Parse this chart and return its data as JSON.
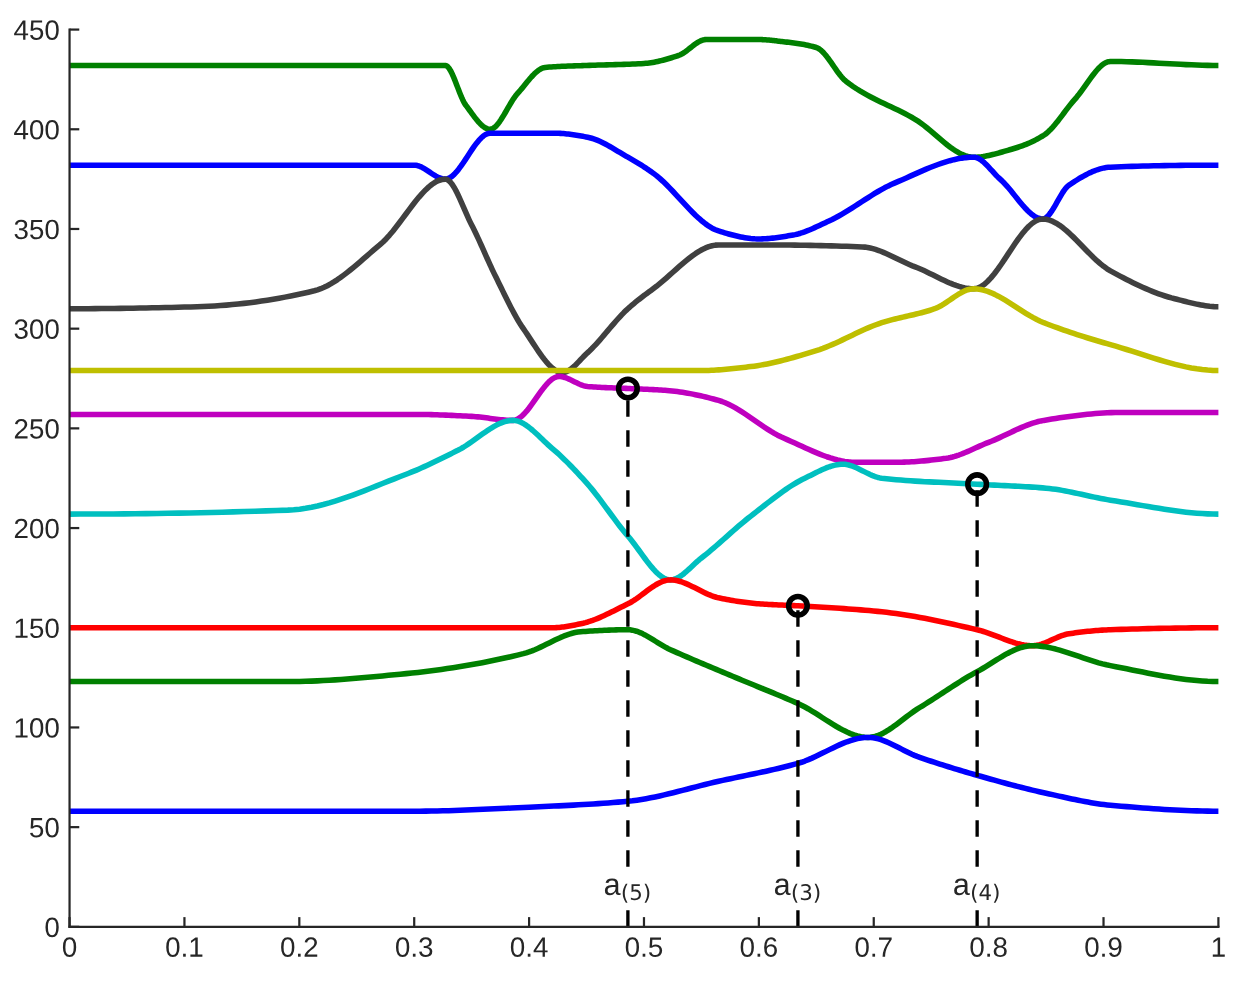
{
  "chart_data": {
    "type": "line",
    "xlim": [
      0,
      1
    ],
    "ylim": [
      0,
      450
    ],
    "xticks": [
      0,
      0.1,
      0.2,
      0.3,
      0.4,
      0.5,
      0.6,
      0.7,
      0.8,
      0.9,
      1
    ],
    "yticks": [
      0,
      50,
      100,
      150,
      200,
      250,
      300,
      350,
      400,
      450
    ],
    "grid": false,
    "legend": false,
    "marker": "none",
    "line_style": "solid",
    "series": [
      {
        "color": "#008000",
        "x": [
          0,
          0.25,
          0.327,
          0.345,
          0.366,
          0.39,
          0.414,
          0.45,
          0.5,
          0.53,
          0.554,
          0.6,
          0.62,
          0.65,
          0.676,
          0.736,
          0.787,
          0.82,
          0.848,
          0.875,
          0.906,
          1
        ],
        "values": [
          432,
          432,
          432,
          412,
          400,
          418,
          431,
          432,
          433,
          437,
          445,
          445,
          444,
          441,
          424,
          405,
          386,
          390,
          397,
          415,
          434,
          432
        ]
      },
      {
        "color": "#0000ff",
        "x": [
          0,
          0.3,
          0.327,
          0.366,
          0.423,
          0.451,
          0.486,
          0.508,
          0.565,
          0.6,
          0.63,
          0.661,
          0.718,
          0.787,
          0.81,
          0.847,
          0.87,
          0.906,
          1
        ],
        "values": [
          382,
          382,
          375,
          398,
          398,
          396,
          386,
          378,
          349,
          345,
          347,
          354,
          373,
          386,
          375,
          355,
          372,
          381,
          382
        ]
      },
      {
        "color": "#404040",
        "x": [
          0,
          0.111,
          0.213,
          0.27,
          0.327,
          0.35,
          0.371,
          0.395,
          0.429,
          0.451,
          0.486,
          0.508,
          0.565,
          0.6,
          0.69,
          0.736,
          0.787,
          0.847,
          0.906,
          0.962,
          1
        ],
        "values": [
          310,
          311,
          319,
          342,
          375,
          352,
          326,
          300,
          278,
          288,
          310,
          320,
          342,
          342,
          341,
          331,
          320,
          355,
          329,
          315,
          311
        ]
      },
      {
        "color": "#bfbf00",
        "x": [
          0,
          0.3,
          0.45,
          0.55,
          0.593,
          0.65,
          0.707,
          0.753,
          0.787,
          0.848,
          0.906,
          1
        ],
        "values": [
          279,
          279,
          279,
          279,
          281,
          289,
          303,
          310,
          320,
          303,
          292,
          279
        ]
      },
      {
        "color": "#bf00bf",
        "x": [
          0,
          0.3,
          0.35,
          0.386,
          0.426,
          0.451,
          0.486,
          0.52,
          0.565,
          0.622,
          0.684,
          0.72,
          0.763,
          0.8,
          0.848,
          0.917,
          1
        ],
        "values": [
          257,
          257,
          256,
          254,
          276,
          271,
          270,
          269,
          264,
          245,
          233,
          233,
          235,
          243,
          254,
          258,
          258
        ]
      },
      {
        "color": "#00bfbf",
        "x": [
          0,
          0.19,
          0.293,
          0.338,
          0.386,
          0.42,
          0.451,
          0.486,
          0.523,
          0.55,
          0.593,
          0.64,
          0.673,
          0.707,
          0.79,
          0.85,
          0.906,
          1
        ],
        "values": [
          207,
          209,
          227,
          239,
          254,
          240,
          222,
          196,
          174,
          185,
          206,
          225,
          232,
          225,
          222,
          220,
          214,
          207
        ]
      },
      {
        "color": "#ff0000",
        "x": [
          0,
          0.3,
          0.42,
          0.445,
          0.486,
          0.523,
          0.565,
          0.6,
          0.634,
          0.707,
          0.79,
          0.838,
          0.87,
          0.906,
          1
        ],
        "values": [
          150,
          150,
          150,
          152,
          162,
          174,
          165,
          162,
          161,
          158,
          149,
          141,
          147,
          149,
          150
        ]
      },
      {
        "color": "#008000",
        "x": [
          0,
          0.19,
          0.293,
          0.395,
          0.445,
          0.486,
          0.523,
          0.58,
          0.634,
          0.695,
          0.74,
          0.79,
          0.838,
          0.906,
          1
        ],
        "values": [
          123,
          123,
          127,
          137,
          148,
          149,
          139,
          125,
          112,
          95,
          110,
          128,
          141,
          131,
          123
        ]
      },
      {
        "color": "#0000ff",
        "x": [
          0,
          0.3,
          0.4,
          0.486,
          0.565,
          0.634,
          0.695,
          0.74,
          0.79,
          0.85,
          0.906,
          1
        ],
        "values": [
          58,
          58,
          60,
          63,
          73,
          82,
          95,
          85,
          76,
          67,
          61,
          58
        ]
      },
      {
        "color": "#000000",
        "line_style": "dashed",
        "x": [
          0.486,
          0.486
        ],
        "values": [
          0,
          270
        ]
      },
      {
        "color": "#000000",
        "line_style": "dashed",
        "x": [
          0.634,
          0.634
        ],
        "values": [
          0,
          161
        ]
      },
      {
        "color": "#000000",
        "line_style": "dashed",
        "x": [
          0.79,
          0.79
        ],
        "values": [
          0,
          222
        ]
      },
      {
        "type": "scatter",
        "marker": "circle",
        "color": "#000000",
        "x": [
          0.486,
          0.634,
          0.79
        ],
        "values": [
          270,
          161,
          222
        ]
      }
    ],
    "annotations": [
      {
        "text": "a$_{(5)}$",
        "x": 0.486,
        "y": 12
      },
      {
        "text": "a$_{(3)}$",
        "x": 0.634,
        "y": 12
      },
      {
        "text": "a$_{(4)}$",
        "x": 0.79,
        "y": 12
      }
    ]
  }
}
